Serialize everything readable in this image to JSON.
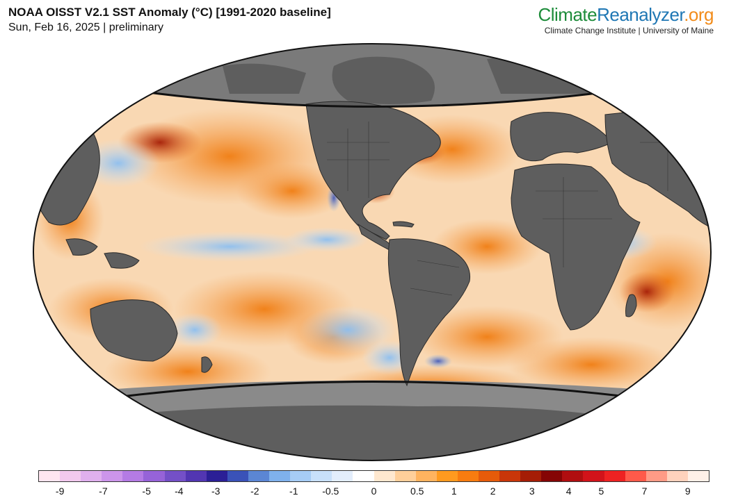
{
  "header": {
    "title": "NOAA OISST V2.1 SST Anomaly (°C) [1991-2020 baseline]",
    "subtitle": "Sun, Feb 16, 2025 | preliminary"
  },
  "branding": {
    "name_part1": "Climate",
    "name_part2": "Reanalyzer",
    "name_part3": ".org",
    "affiliation": "Climate Change Institute | University of Maine",
    "colors": {
      "part1": "#1d8c3a",
      "part2": "#1f77b4",
      "part3": "#f28c1b"
    }
  },
  "map": {
    "projection": "Robinson",
    "variable": "SST Anomaly",
    "land_color": "#5e5e5e",
    "sea_ice_mask_color": "#8a8a8a",
    "ocean_pattern": "mostly positive anomalies (orange/red), cool anomalies in the equatorial central Pacific (La Niña) and parts of the southeast Pacific"
  },
  "colorbar": {
    "colors": [
      "#ffe6f0",
      "#f2c9ee",
      "#e0b0ee",
      "#cc95ea",
      "#b47be4",
      "#9663d8",
      "#7450c7",
      "#5236b2",
      "#2b1f96",
      "#3a52b8",
      "#5b86d4",
      "#7fb1ec",
      "#a6ccf5",
      "#c8e0fa",
      "#e3eefc",
      "#ffffff",
      "#ffe8cf",
      "#ffcf9a",
      "#ffb35f",
      "#ff9a1f",
      "#f87c10",
      "#e65b0a",
      "#c93609",
      "#a51d06",
      "#850505",
      "#b00e10",
      "#d2131a",
      "#ee2222",
      "#ff5a4a",
      "#ff9b86",
      "#ffd2bd",
      "#fff0e8"
    ],
    "tick_labels": [
      "-9",
      "-7",
      "-5",
      "-4",
      "-3",
      "-2",
      "-1",
      "-0.5",
      "0",
      "0.5",
      "1",
      "2",
      "3",
      "4",
      "5",
      "7",
      "9"
    ],
    "tick_fractions": [
      0.0323,
      0.0968,
      0.1613,
      0.2097,
      0.2645,
      0.3226,
      0.3806,
      0.4355,
      0.5,
      0.5645,
      0.6194,
      0.6774,
      0.7355,
      0.7903,
      0.8387,
      0.9032,
      0.9677
    ]
  }
}
